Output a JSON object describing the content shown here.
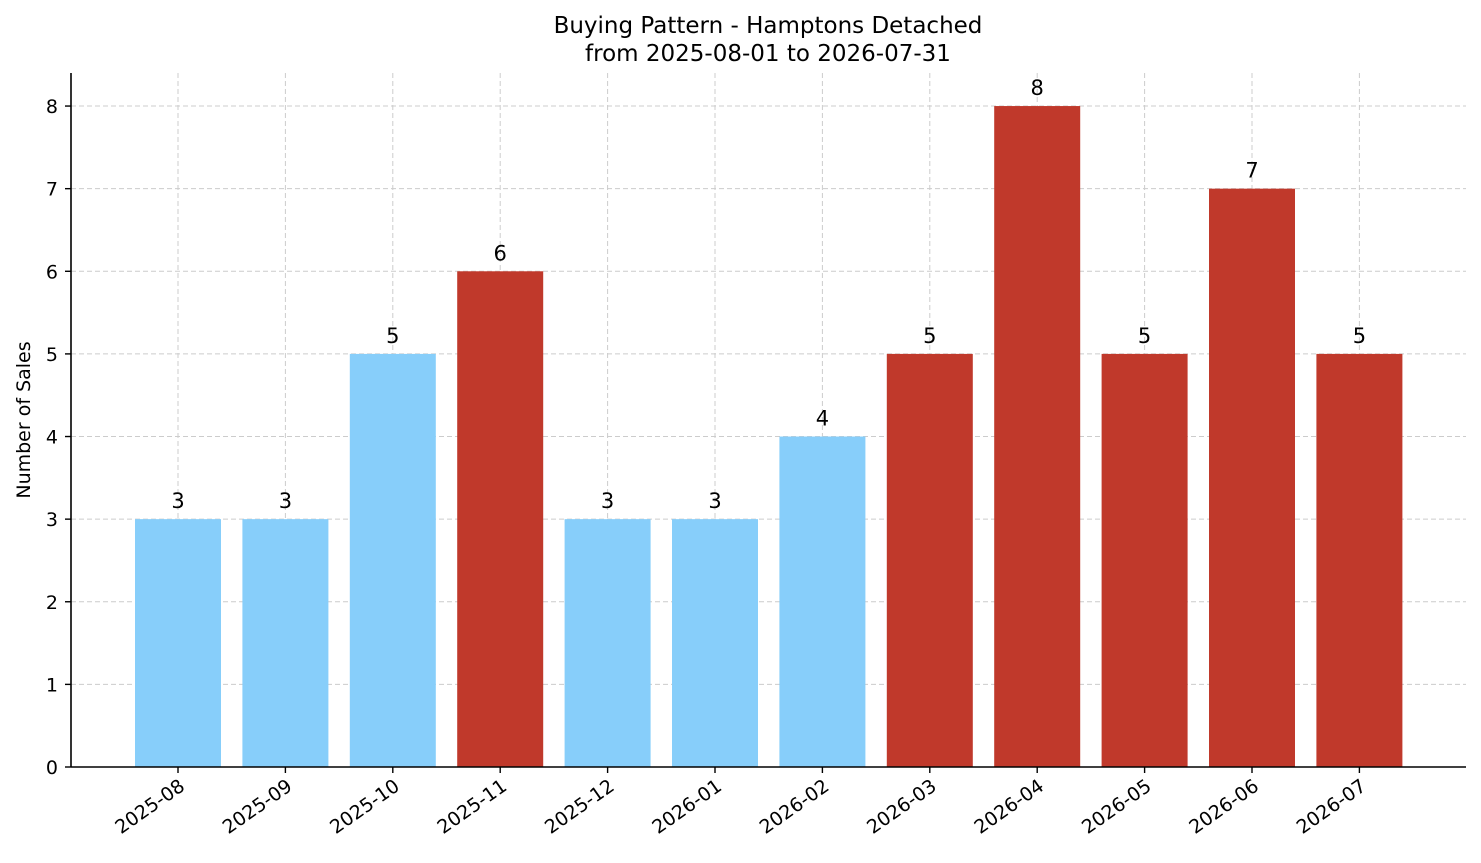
{
  "chart_data": {
    "type": "bar",
    "title_line1": "Buying Pattern - Hamptons Detached",
    "title_line2": "from 2025-08-01 to 2026-07-31",
    "xlabel": "",
    "ylabel": "Number of Sales",
    "ylim": [
      0,
      8.4
    ],
    "yticks": [
      "0",
      "1",
      "2",
      "3",
      "4",
      "5",
      "6",
      "7",
      "8"
    ],
    "categories": [
      "2025-08",
      "2025-09",
      "2025-10",
      "2025-11",
      "2025-12",
      "2026-01",
      "2026-02",
      "2026-03",
      "2026-04",
      "2026-05",
      "2026-06",
      "2026-07"
    ],
    "values": [
      3,
      3,
      5,
      6,
      3,
      3,
      4,
      5,
      8,
      5,
      7,
      5
    ],
    "data_labels": [
      "3",
      "3",
      "5",
      "6",
      "3",
      "3",
      "4",
      "5",
      "8",
      "5",
      "7",
      "5"
    ],
    "bar_colors": [
      "#87CEFA",
      "#87CEFA",
      "#87CEFA",
      "#C0392B",
      "#87CEFA",
      "#87CEFA",
      "#87CEFA",
      "#C0392B",
      "#C0392B",
      "#C0392B",
      "#C0392B",
      "#C0392B"
    ],
    "grid": true
  }
}
